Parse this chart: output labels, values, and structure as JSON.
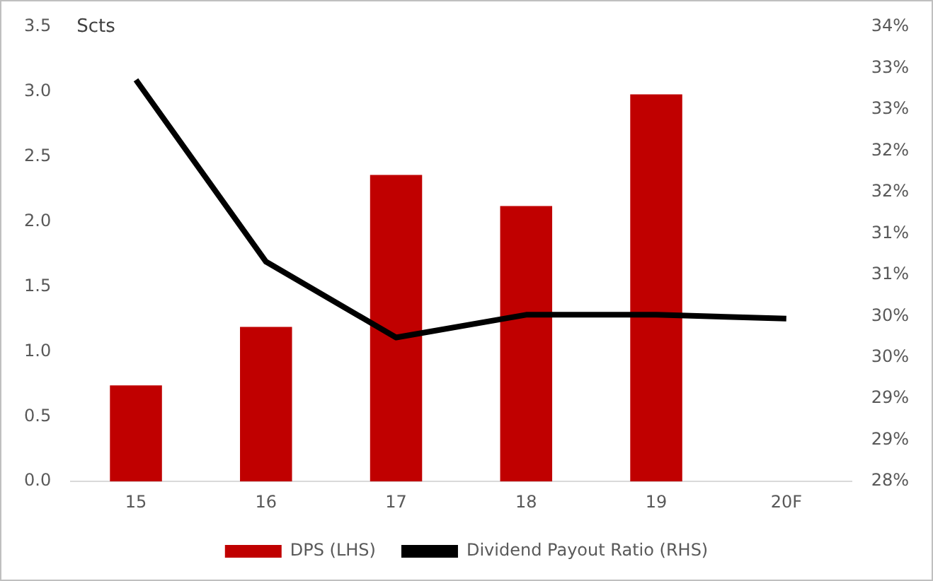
{
  "chart_data": {
    "type": "bar",
    "ylabel": "Scts",
    "categories": [
      "15",
      "16",
      "17",
      "18",
      "19",
      "20F"
    ],
    "series": [
      {
        "name": "DPS (LHS)",
        "color": "#c00000",
        "values": [
          0.74,
          1.19,
          2.36,
          2.12,
          2.98,
          null
        ]
      },
      {
        "name": "Dividend Payout Ratio (RHS)",
        "type": "line",
        "axis": "y2",
        "color": "#000000",
        "values": [
          33.3,
          30.9,
          29.9,
          30.2,
          30.2,
          30.15
        ]
      }
    ],
    "ylim": [
      0,
      3.5
    ],
    "yticks": [
      {
        "value": 0,
        "label": "0.0"
      },
      {
        "value": 0.5,
        "label": "0.5"
      },
      {
        "value": 1,
        "label": "1.0"
      },
      {
        "value": 1.5,
        "label": "1.5"
      },
      {
        "value": 2,
        "label": "2.0"
      },
      {
        "value": 2.5,
        "label": "2.5"
      },
      {
        "value": 3,
        "label": "3.0"
      },
      {
        "value": 3.5,
        "label": "3.5"
      }
    ],
    "y2lim": [
      28,
      34
    ],
    "y2ticks": [
      {
        "value": 28,
        "label": "28%"
      },
      {
        "value": 28.545,
        "label": "29%"
      },
      {
        "value": 29.091,
        "label": "29%"
      },
      {
        "value": 29.636,
        "label": "30%"
      },
      {
        "value": 30.182,
        "label": "30%"
      },
      {
        "value": 30.727,
        "label": "31%"
      },
      {
        "value": 31.273,
        "label": "31%"
      },
      {
        "value": 31.818,
        "label": "32%"
      },
      {
        "value": 32.364,
        "label": "32%"
      },
      {
        "value": 32.909,
        "label": "33%"
      },
      {
        "value": 33.455,
        "label": "33%"
      },
      {
        "value": 34,
        "label": "34%"
      }
    ],
    "grid": false,
    "legend": "bottom",
    "marker": "none",
    "line_style": "solid"
  }
}
